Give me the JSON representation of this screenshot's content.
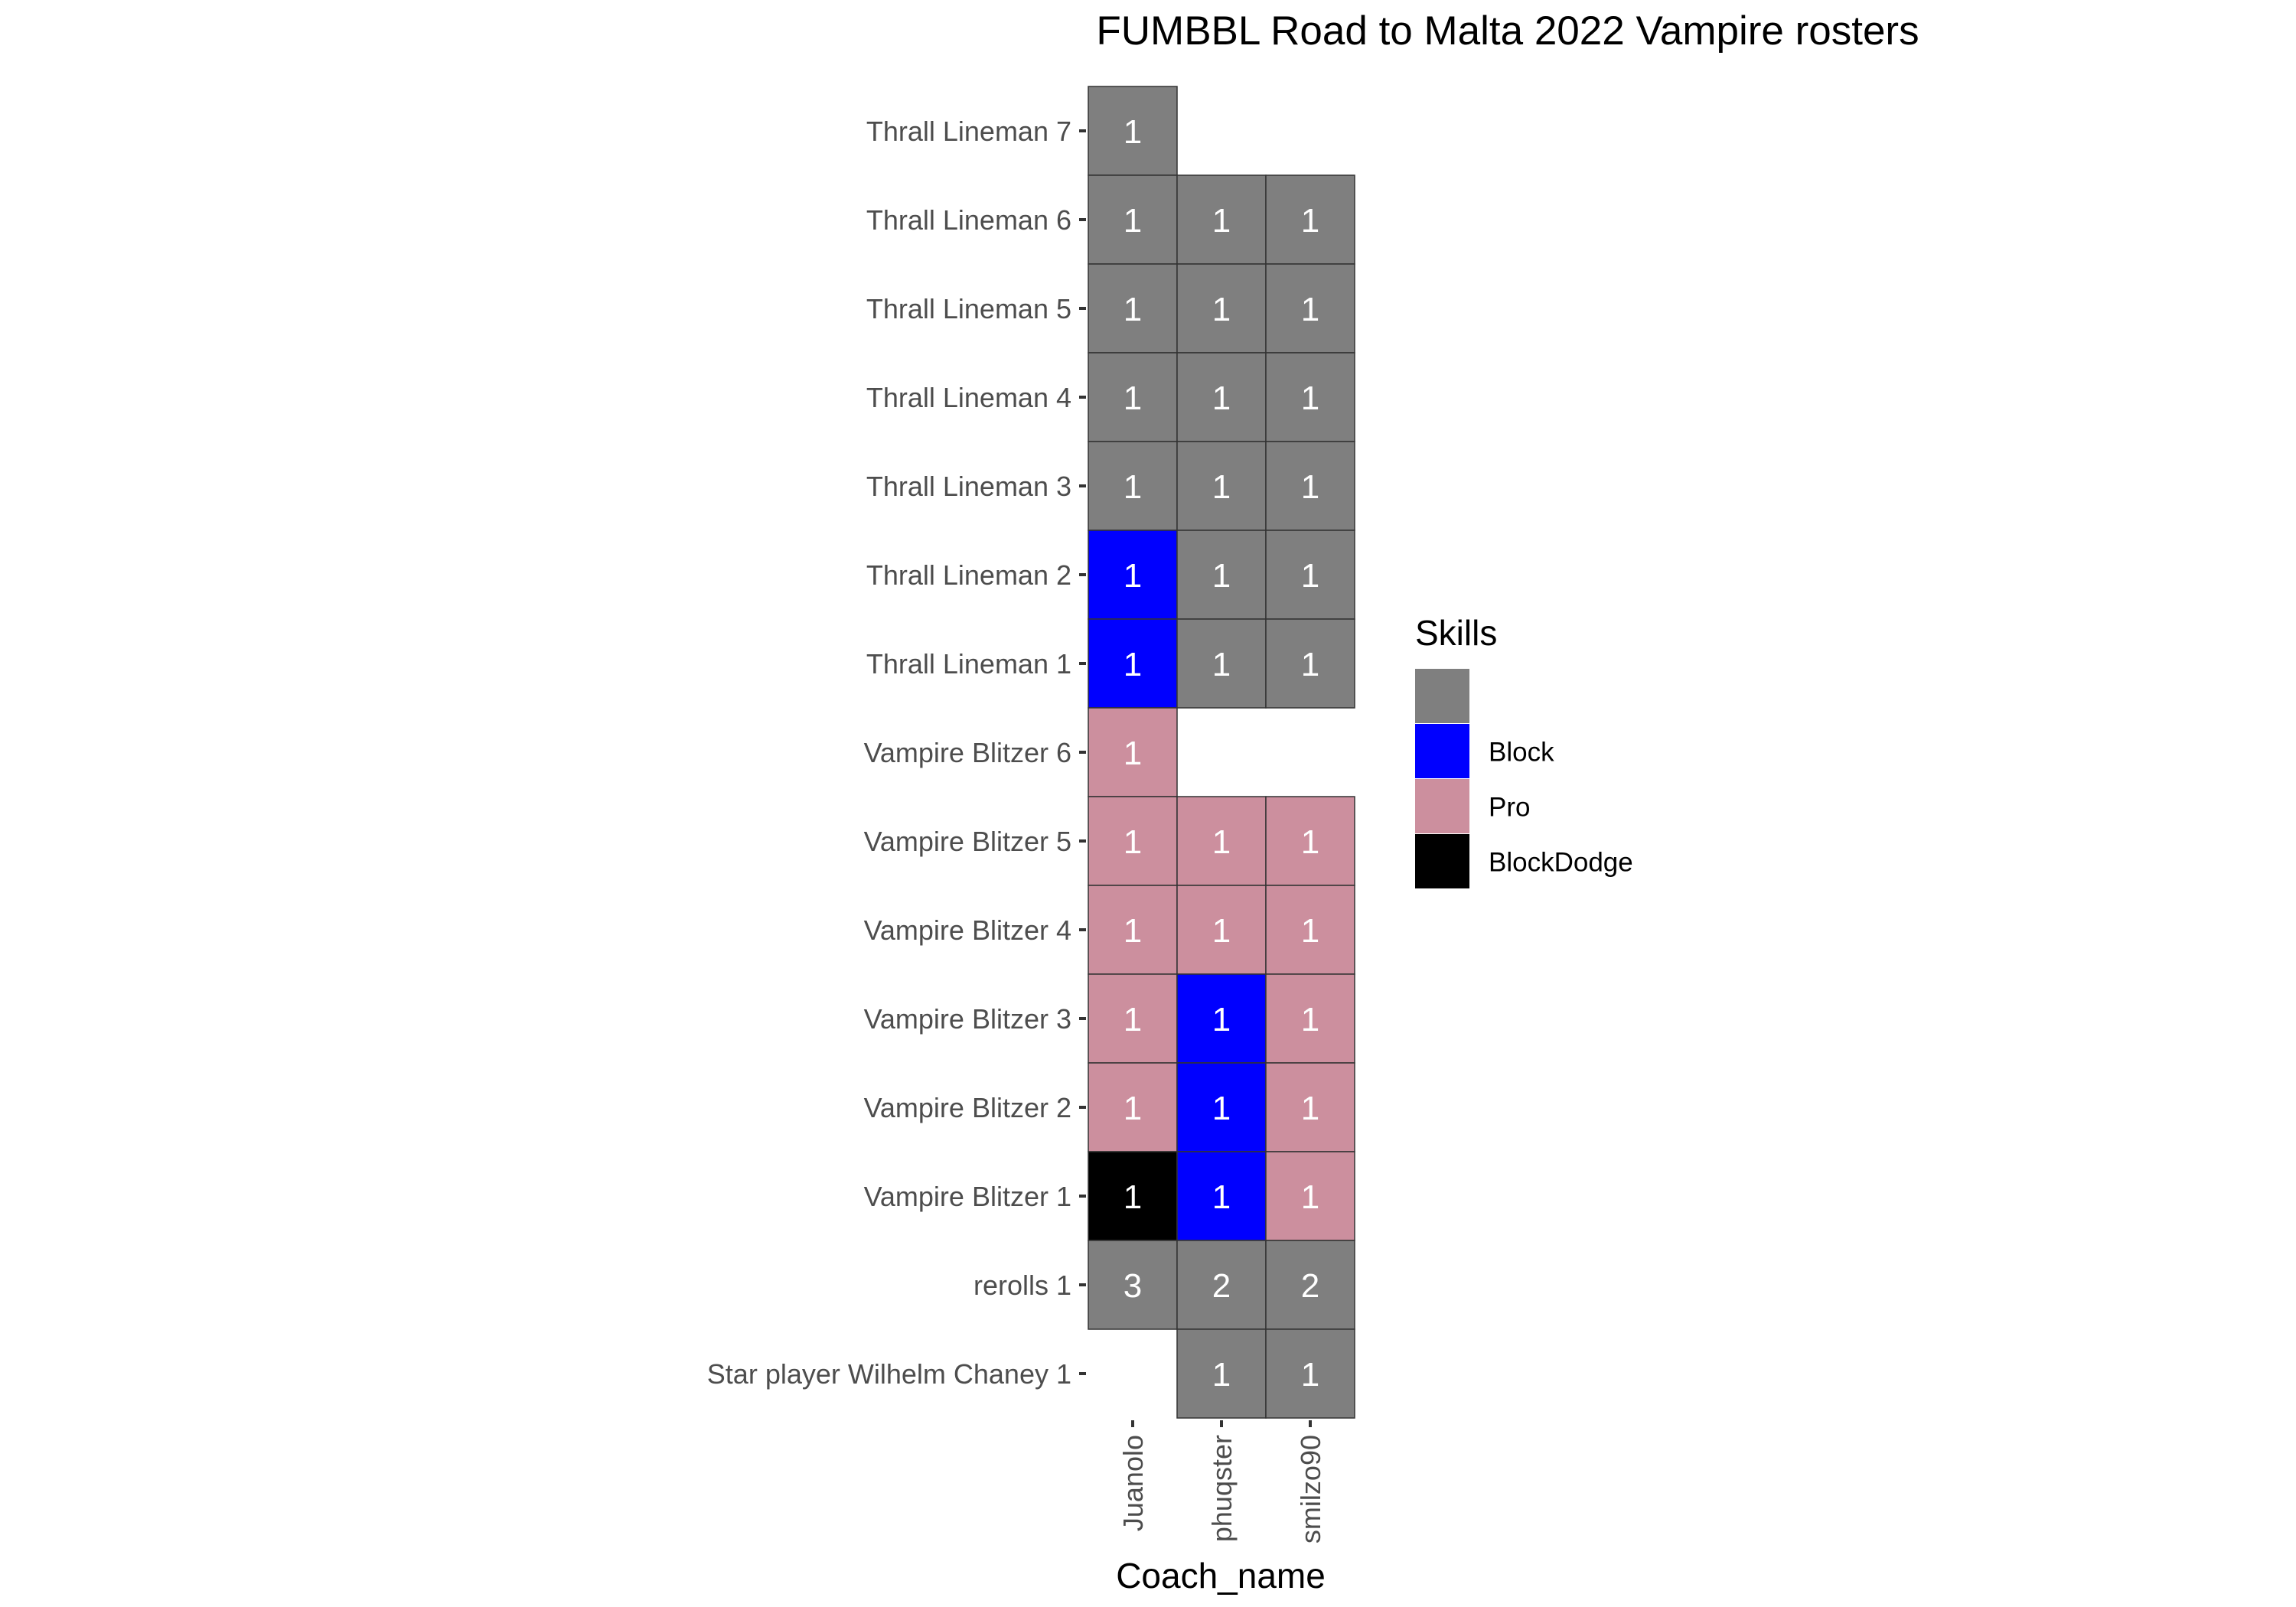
{
  "chart_data": {
    "type": "heatmap",
    "title": "FUMBBL Road to Malta 2022 Vampire rosters",
    "xlabel": "Coach_name",
    "ylabel": "",
    "x_categories": [
      "Juanolo",
      "phuqster",
      "smilzo90"
    ],
    "y_categories": [
      "Thrall Lineman 7",
      "Thrall Lineman 6",
      "Thrall Lineman 5",
      "Thrall Lineman 4",
      "Thrall Lineman 3",
      "Thrall Lineman 2",
      "Thrall Lineman 1",
      "Vampire Blitzer 6",
      "Vampire Blitzer 5",
      "Vampire Blitzer 4",
      "Vampire Blitzer 3",
      "Vampire Blitzer 2",
      "Vampire Blitzer 1",
      "rerolls 1",
      "Star player Wilhelm Chaney 1"
    ],
    "legend": {
      "title": "Skills",
      "position": "right",
      "entries": [
        {
          "label": "",
          "color": "#7f7f7f"
        },
        {
          "label": "Block",
          "color": "#0000ff"
        },
        {
          "label": "Pro",
          "color": "#cc8f9e"
        },
        {
          "label": "BlockDodge",
          "color": "#000000"
        }
      ]
    },
    "cells": [
      {
        "x": "Juanolo",
        "y": "Thrall Lineman 7",
        "value": 1,
        "skill": ""
      },
      {
        "x": "Juanolo",
        "y": "Thrall Lineman 6",
        "value": 1,
        "skill": ""
      },
      {
        "x": "phuqster",
        "y": "Thrall Lineman 6",
        "value": 1,
        "skill": ""
      },
      {
        "x": "smilzo90",
        "y": "Thrall Lineman 6",
        "value": 1,
        "skill": ""
      },
      {
        "x": "Juanolo",
        "y": "Thrall Lineman 5",
        "value": 1,
        "skill": ""
      },
      {
        "x": "phuqster",
        "y": "Thrall Lineman 5",
        "value": 1,
        "skill": ""
      },
      {
        "x": "smilzo90",
        "y": "Thrall Lineman 5",
        "value": 1,
        "skill": ""
      },
      {
        "x": "Juanolo",
        "y": "Thrall Lineman 4",
        "value": 1,
        "skill": ""
      },
      {
        "x": "phuqster",
        "y": "Thrall Lineman 4",
        "value": 1,
        "skill": ""
      },
      {
        "x": "smilzo90",
        "y": "Thrall Lineman 4",
        "value": 1,
        "skill": ""
      },
      {
        "x": "Juanolo",
        "y": "Thrall Lineman 3",
        "value": 1,
        "skill": ""
      },
      {
        "x": "phuqster",
        "y": "Thrall Lineman 3",
        "value": 1,
        "skill": ""
      },
      {
        "x": "smilzo90",
        "y": "Thrall Lineman 3",
        "value": 1,
        "skill": ""
      },
      {
        "x": "Juanolo",
        "y": "Thrall Lineman 2",
        "value": 1,
        "skill": "Block"
      },
      {
        "x": "phuqster",
        "y": "Thrall Lineman 2",
        "value": 1,
        "skill": ""
      },
      {
        "x": "smilzo90",
        "y": "Thrall Lineman 2",
        "value": 1,
        "skill": ""
      },
      {
        "x": "Juanolo",
        "y": "Thrall Lineman 1",
        "value": 1,
        "skill": "Block"
      },
      {
        "x": "phuqster",
        "y": "Thrall Lineman 1",
        "value": 1,
        "skill": ""
      },
      {
        "x": "smilzo90",
        "y": "Thrall Lineman 1",
        "value": 1,
        "skill": ""
      },
      {
        "x": "Juanolo",
        "y": "Vampire Blitzer 6",
        "value": 1,
        "skill": "Pro"
      },
      {
        "x": "Juanolo",
        "y": "Vampire Blitzer 5",
        "value": 1,
        "skill": "Pro"
      },
      {
        "x": "phuqster",
        "y": "Vampire Blitzer 5",
        "value": 1,
        "skill": "Pro"
      },
      {
        "x": "smilzo90",
        "y": "Vampire Blitzer 5",
        "value": 1,
        "skill": "Pro"
      },
      {
        "x": "Juanolo",
        "y": "Vampire Blitzer 4",
        "value": 1,
        "skill": "Pro"
      },
      {
        "x": "phuqster",
        "y": "Vampire Blitzer 4",
        "value": 1,
        "skill": "Pro"
      },
      {
        "x": "smilzo90",
        "y": "Vampire Blitzer 4",
        "value": 1,
        "skill": "Pro"
      },
      {
        "x": "Juanolo",
        "y": "Vampire Blitzer 3",
        "value": 1,
        "skill": "Pro"
      },
      {
        "x": "phuqster",
        "y": "Vampire Blitzer 3",
        "value": 1,
        "skill": "Block"
      },
      {
        "x": "smilzo90",
        "y": "Vampire Blitzer 3",
        "value": 1,
        "skill": "Pro"
      },
      {
        "x": "Juanolo",
        "y": "Vampire Blitzer 2",
        "value": 1,
        "skill": "Pro"
      },
      {
        "x": "phuqster",
        "y": "Vampire Blitzer 2",
        "value": 1,
        "skill": "Block"
      },
      {
        "x": "smilzo90",
        "y": "Vampire Blitzer 2",
        "value": 1,
        "skill": "Pro"
      },
      {
        "x": "Juanolo",
        "y": "Vampire Blitzer 1",
        "value": 1,
        "skill": "BlockDodge"
      },
      {
        "x": "phuqster",
        "y": "Vampire Blitzer 1",
        "value": 1,
        "skill": "Block"
      },
      {
        "x": "smilzo90",
        "y": "Vampire Blitzer 1",
        "value": 1,
        "skill": "Pro"
      },
      {
        "x": "Juanolo",
        "y": "rerolls 1",
        "value": 3,
        "skill": ""
      },
      {
        "x": "phuqster",
        "y": "rerolls 1",
        "value": 2,
        "skill": ""
      },
      {
        "x": "smilzo90",
        "y": "rerolls 1",
        "value": 2,
        "skill": ""
      },
      {
        "x": "phuqster",
        "y": "Star player Wilhelm Chaney 1",
        "value": 1,
        "skill": ""
      },
      {
        "x": "smilzo90",
        "y": "Star player Wilhelm Chaney 1",
        "value": 1,
        "skill": ""
      }
    ],
    "grid": false
  }
}
